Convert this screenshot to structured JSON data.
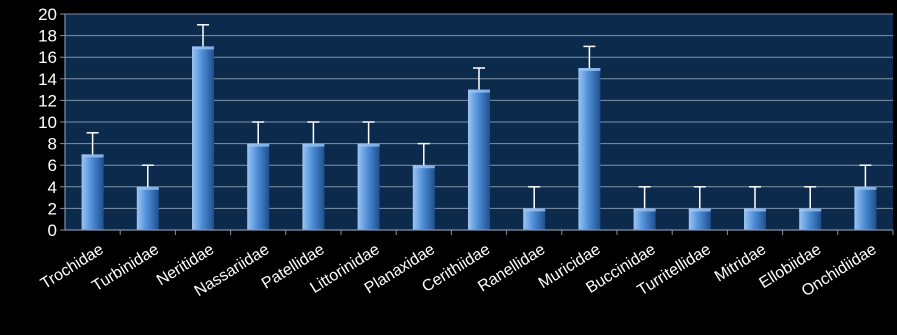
{
  "chart_data": {
    "type": "bar",
    "title": "",
    "xlabel": "",
    "ylabel": "",
    "categories": [
      "Trochidae",
      "Turbinidae",
      "Neritidae",
      "Nassariidae",
      "Patellidae",
      "Littorinidae",
      "Planaxidae",
      "Cerithiidae",
      "Ranellidae",
      "Muricidae",
      "Buccinidae",
      "Turritellidae",
      "Mitridae",
      "Ellobiidae",
      "Onchidiidae"
    ],
    "values": [
      7,
      4,
      17,
      8,
      8,
      8,
      6,
      13,
      2,
      15,
      2,
      2,
      2,
      2,
      4
    ],
    "error_plus": [
      2,
      2,
      2,
      2,
      2,
      2,
      2,
      2,
      2,
      2,
      2,
      2,
      2,
      2,
      2
    ],
    "ylim": [
      0,
      20
    ],
    "yticks": [
      "0",
      "2",
      "4",
      "6",
      "8",
      "10",
      "12",
      "14",
      "16",
      "18",
      "20"
    ],
    "grid": true,
    "legend": "none",
    "colors": {
      "background": "#000000",
      "plot_area": "#0b2a4c",
      "gridline": "#7f93aa",
      "bar_light": "#9cc4f2",
      "bar_mid": "#4f8fd8",
      "bar_dark": "#1f4f8f",
      "error_bar": "#ffffff",
      "text": "#ffffff"
    }
  }
}
